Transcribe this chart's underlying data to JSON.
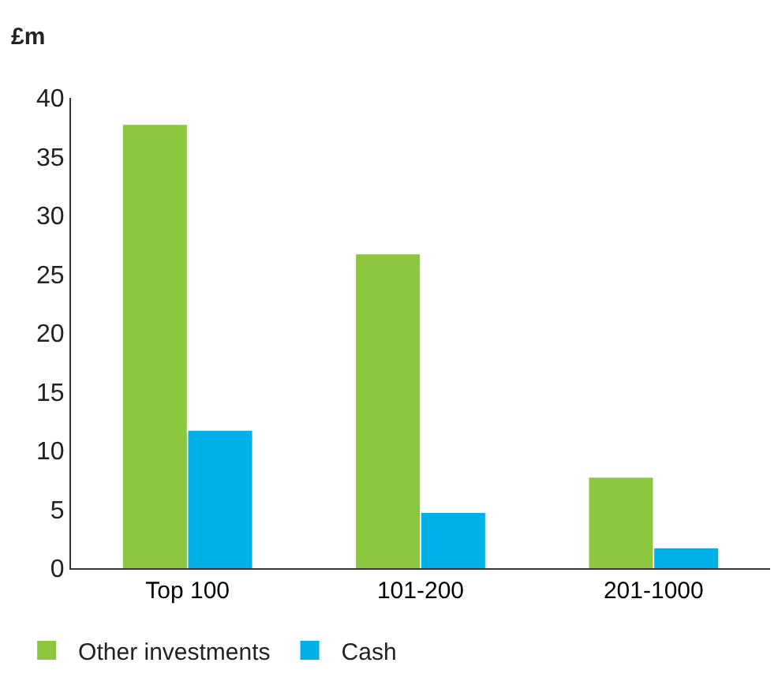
{
  "chart_data": {
    "type": "bar",
    "ylabel": "£m",
    "categories": [
      "Top 100",
      "101-200",
      "201-1000"
    ],
    "series": [
      {
        "name": "Other investments",
        "color": "#8dc63f",
        "values": [
          37.7,
          26.7,
          7.7
        ]
      },
      {
        "name": "Cash",
        "color": "#00b0e8",
        "values": [
          11.7,
          4.7,
          1.7
        ]
      }
    ],
    "ylim": [
      0,
      40
    ],
    "yticks": [
      0,
      5,
      10,
      15,
      20,
      25,
      30,
      35,
      40
    ],
    "legend": "bottom left"
  }
}
